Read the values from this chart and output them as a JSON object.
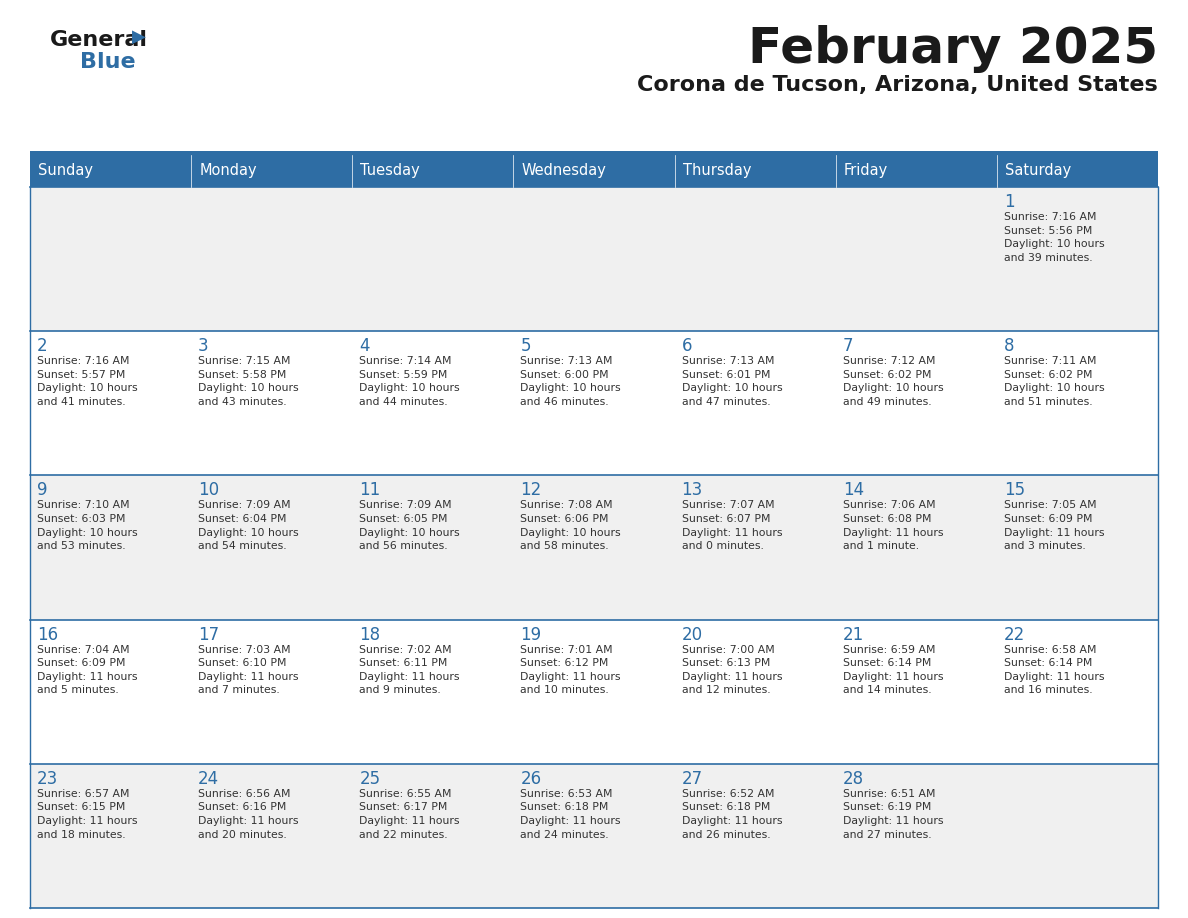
{
  "title": "February 2025",
  "subtitle": "Corona de Tucson, Arizona, United States",
  "header_bg": "#2E6DA4",
  "header_text_color": "#FFFFFF",
  "cell_bg_even": "#F0F0F0",
  "cell_bg_odd": "#FFFFFF",
  "day_number_color": "#2E6DA4",
  "text_color": "#333333",
  "border_color": "#2E6DA4",
  "days_of_week": [
    "Sunday",
    "Monday",
    "Tuesday",
    "Wednesday",
    "Thursday",
    "Friday",
    "Saturday"
  ],
  "logo_color": "#2E6DA4",
  "logo_black": "#1a1a1a",
  "weeks": [
    [
      {
        "day": 0,
        "text": ""
      },
      {
        "day": 0,
        "text": ""
      },
      {
        "day": 0,
        "text": ""
      },
      {
        "day": 0,
        "text": ""
      },
      {
        "day": 0,
        "text": ""
      },
      {
        "day": 0,
        "text": ""
      },
      {
        "day": 1,
        "text": "Sunrise: 7:16 AM\nSunset: 5:56 PM\nDaylight: 10 hours\nand 39 minutes."
      }
    ],
    [
      {
        "day": 2,
        "text": "Sunrise: 7:16 AM\nSunset: 5:57 PM\nDaylight: 10 hours\nand 41 minutes."
      },
      {
        "day": 3,
        "text": "Sunrise: 7:15 AM\nSunset: 5:58 PM\nDaylight: 10 hours\nand 43 minutes."
      },
      {
        "day": 4,
        "text": "Sunrise: 7:14 AM\nSunset: 5:59 PM\nDaylight: 10 hours\nand 44 minutes."
      },
      {
        "day": 5,
        "text": "Sunrise: 7:13 AM\nSunset: 6:00 PM\nDaylight: 10 hours\nand 46 minutes."
      },
      {
        "day": 6,
        "text": "Sunrise: 7:13 AM\nSunset: 6:01 PM\nDaylight: 10 hours\nand 47 minutes."
      },
      {
        "day": 7,
        "text": "Sunrise: 7:12 AM\nSunset: 6:02 PM\nDaylight: 10 hours\nand 49 minutes."
      },
      {
        "day": 8,
        "text": "Sunrise: 7:11 AM\nSunset: 6:02 PM\nDaylight: 10 hours\nand 51 minutes."
      }
    ],
    [
      {
        "day": 9,
        "text": "Sunrise: 7:10 AM\nSunset: 6:03 PM\nDaylight: 10 hours\nand 53 minutes."
      },
      {
        "day": 10,
        "text": "Sunrise: 7:09 AM\nSunset: 6:04 PM\nDaylight: 10 hours\nand 54 minutes."
      },
      {
        "day": 11,
        "text": "Sunrise: 7:09 AM\nSunset: 6:05 PM\nDaylight: 10 hours\nand 56 minutes."
      },
      {
        "day": 12,
        "text": "Sunrise: 7:08 AM\nSunset: 6:06 PM\nDaylight: 10 hours\nand 58 minutes."
      },
      {
        "day": 13,
        "text": "Sunrise: 7:07 AM\nSunset: 6:07 PM\nDaylight: 11 hours\nand 0 minutes."
      },
      {
        "day": 14,
        "text": "Sunrise: 7:06 AM\nSunset: 6:08 PM\nDaylight: 11 hours\nand 1 minute."
      },
      {
        "day": 15,
        "text": "Sunrise: 7:05 AM\nSunset: 6:09 PM\nDaylight: 11 hours\nand 3 minutes."
      }
    ],
    [
      {
        "day": 16,
        "text": "Sunrise: 7:04 AM\nSunset: 6:09 PM\nDaylight: 11 hours\nand 5 minutes."
      },
      {
        "day": 17,
        "text": "Sunrise: 7:03 AM\nSunset: 6:10 PM\nDaylight: 11 hours\nand 7 minutes."
      },
      {
        "day": 18,
        "text": "Sunrise: 7:02 AM\nSunset: 6:11 PM\nDaylight: 11 hours\nand 9 minutes."
      },
      {
        "day": 19,
        "text": "Sunrise: 7:01 AM\nSunset: 6:12 PM\nDaylight: 11 hours\nand 10 minutes."
      },
      {
        "day": 20,
        "text": "Sunrise: 7:00 AM\nSunset: 6:13 PM\nDaylight: 11 hours\nand 12 minutes."
      },
      {
        "day": 21,
        "text": "Sunrise: 6:59 AM\nSunset: 6:14 PM\nDaylight: 11 hours\nand 14 minutes."
      },
      {
        "day": 22,
        "text": "Sunrise: 6:58 AM\nSunset: 6:14 PM\nDaylight: 11 hours\nand 16 minutes."
      }
    ],
    [
      {
        "day": 23,
        "text": "Sunrise: 6:57 AM\nSunset: 6:15 PM\nDaylight: 11 hours\nand 18 minutes."
      },
      {
        "day": 24,
        "text": "Sunrise: 6:56 AM\nSunset: 6:16 PM\nDaylight: 11 hours\nand 20 minutes."
      },
      {
        "day": 25,
        "text": "Sunrise: 6:55 AM\nSunset: 6:17 PM\nDaylight: 11 hours\nand 22 minutes."
      },
      {
        "day": 26,
        "text": "Sunrise: 6:53 AM\nSunset: 6:18 PM\nDaylight: 11 hours\nand 24 minutes."
      },
      {
        "day": 27,
        "text": "Sunrise: 6:52 AM\nSunset: 6:18 PM\nDaylight: 11 hours\nand 26 minutes."
      },
      {
        "day": 28,
        "text": "Sunrise: 6:51 AM\nSunset: 6:19 PM\nDaylight: 11 hours\nand 27 minutes."
      },
      {
        "day": 0,
        "text": ""
      }
    ]
  ]
}
